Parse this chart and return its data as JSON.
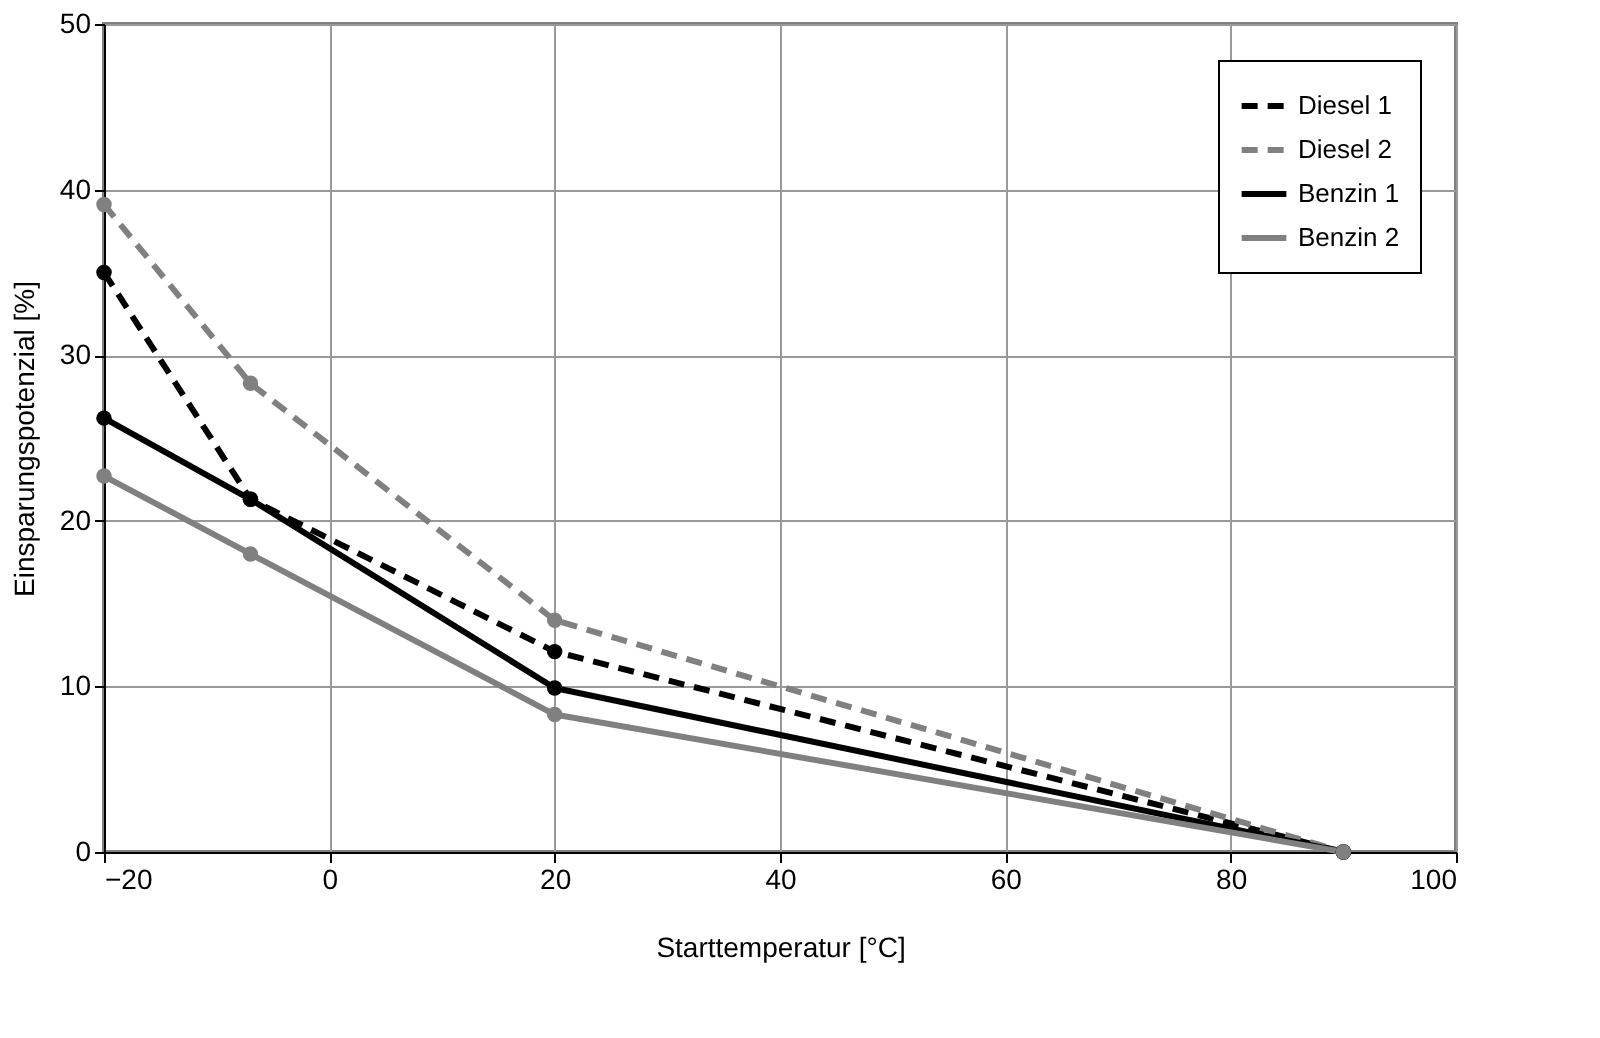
{
  "chart_data": {
    "type": "line",
    "xlabel": "Starttemperatur [°C]",
    "ylabel": "Einsparungspotenzial [%]",
    "x": [
      -20,
      -7,
      20,
      90
    ],
    "series": [
      {
        "name": "Diesel 1",
        "color": "#000000",
        "line_style": "dashed",
        "values": [
          35,
          21.3,
          12.1,
          0
        ]
      },
      {
        "name": "Diesel 2",
        "color": "#808080",
        "line_style": "dashed",
        "values": [
          39.1,
          28.3,
          14,
          0
        ]
      },
      {
        "name": "Benzin 1",
        "color": "#000000",
        "line_style": "solid",
        "values": [
          26.2,
          21.3,
          9.9,
          0
        ]
      },
      {
        "name": "Benzin 2",
        "color": "#808080",
        "line_style": "solid",
        "values": [
          22.7,
          18,
          8.3,
          0
        ]
      }
    ],
    "xlim": [
      -20,
      100
    ],
    "xticks": [
      -20,
      0,
      20,
      40,
      60,
      80,
      100
    ],
    "ylim": [
      0,
      50
    ],
    "yticks": [
      0,
      10,
      20,
      30,
      40,
      50
    ],
    "grid": true,
    "legend": "top right",
    "marker": "circle"
  }
}
